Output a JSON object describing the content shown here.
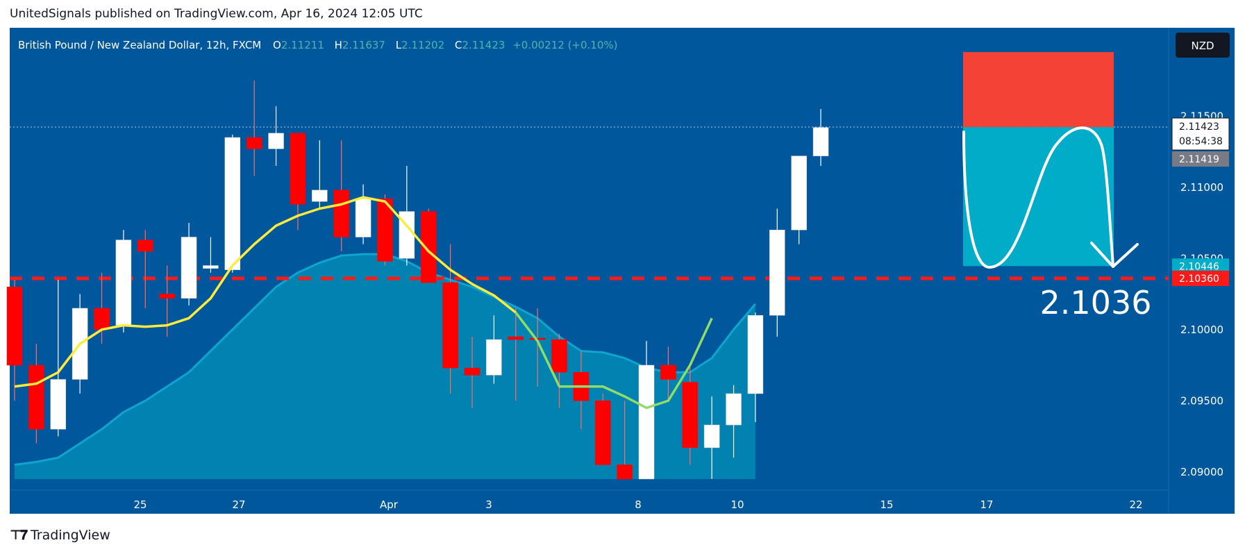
{
  "header": {
    "published_text": "UnitedSignals published on TradingView.com, Apr 16, 2024 12:05 UTC"
  },
  "legend": {
    "symbol": "British Pound / New Zealand Dollar, 12h, FXCM",
    "o_label": "O",
    "o_value": "2.11211",
    "h_label": "H",
    "h_value": "2.11637",
    "l_label": "L",
    "l_value": "2.11202",
    "c_label": "C",
    "c_value": "2.11423",
    "change": "+0.00212 (+0.10%)"
  },
  "currency_badge": "NZD",
  "price_labels": {
    "last_price": "2.11423",
    "countdown": "08:54:38",
    "bid": "2.11419",
    "target": "2.10446",
    "level": "2.10360"
  },
  "annotation_text": "2.1036",
  "footer": {
    "brand": "TradingView"
  },
  "colors": {
    "background": "#00579c",
    "bull_candle": "#ffffff",
    "bear_candle": "#ff0000",
    "ema_fast": "#ffeb3b",
    "ema_fast_late": "#8fdc6a",
    "ema_slow_fill": "#0289b4",
    "level_line": "#ff1a1a",
    "stop_zone": "#f44336",
    "target_zone": "#00acc8"
  },
  "icons": {
    "logo": "tradingview-logo-icon",
    "arrow": "curved-arrow-down-icon"
  },
  "chart_data": {
    "type": "candlestick",
    "ylim": [
      2.0895,
      2.1195
    ],
    "y_ticks": [
      "2.11500",
      "2.11000",
      "2.10500",
      "2.10000",
      "2.09500",
      "2.09000"
    ],
    "x_ticks": [
      "25",
      "27",
      "Apr",
      "3",
      "8",
      "10",
      "15",
      "17",
      "22"
    ],
    "horizontal_level": 2.1036,
    "last_price": 2.11423,
    "candles": [
      {
        "o": 2.103,
        "h": 2.1035,
        "l": 2.095,
        "c": 2.0975
      },
      {
        "o": 2.0975,
        "h": 2.099,
        "l": 2.092,
        "c": 2.093
      },
      {
        "o": 2.093,
        "h": 2.1035,
        "l": 2.0925,
        "c": 2.0965
      },
      {
        "o": 2.0965,
        "h": 2.1025,
        "l": 2.0955,
        "c": 2.1015
      },
      {
        "o": 2.1015,
        "h": 2.104,
        "l": 2.099,
        "c": 2.1
      },
      {
        "o": 2.1003,
        "h": 2.107,
        "l": 2.0998,
        "c": 2.1063
      },
      {
        "o": 2.1063,
        "h": 2.107,
        "l": 2.1015,
        "c": 2.1055
      },
      {
        "o": 2.1025,
        "h": 2.1045,
        "l": 2.0995,
        "c": 2.1022
      },
      {
        "o": 2.1022,
        "h": 2.1075,
        "l": 2.1017,
        "c": 2.1065
      },
      {
        "o": 2.1043,
        "h": 2.1065,
        "l": 2.104,
        "c": 2.1045
      },
      {
        "o": 2.1042,
        "h": 2.1137,
        "l": 2.104,
        "c": 2.1135
      },
      {
        "o": 2.1135,
        "h": 2.1175,
        "l": 2.1108,
        "c": 2.1127
      },
      {
        "o": 2.1127,
        "h": 2.1157,
        "l": 2.1115,
        "c": 2.1138
      },
      {
        "o": 2.1138,
        "h": 2.1138,
        "l": 2.107,
        "c": 2.1088
      },
      {
        "o": 2.109,
        "h": 2.1133,
        "l": 2.1085,
        "c": 2.1098
      },
      {
        "o": 2.1098,
        "h": 2.1133,
        "l": 2.1055,
        "c": 2.1065
      },
      {
        "o": 2.1065,
        "h": 2.1102,
        "l": 2.106,
        "c": 2.1092
      },
      {
        "o": 2.1092,
        "h": 2.1095,
        "l": 2.1045,
        "c": 2.1048
      },
      {
        "o": 2.105,
        "h": 2.1115,
        "l": 2.1045,
        "c": 2.1083
      },
      {
        "o": 2.1083,
        "h": 2.1085,
        "l": 2.1035,
        "c": 2.1033
      },
      {
        "o": 2.1033,
        "h": 2.106,
        "l": 2.0955,
        "c": 2.0973
      },
      {
        "o": 2.0973,
        "h": 2.0995,
        "l": 2.0945,
        "c": 2.0968
      },
      {
        "o": 2.0968,
        "h": 2.101,
        "l": 2.0962,
        "c": 2.0993
      },
      {
        "o": 2.0995,
        "h": 2.1015,
        "l": 2.095,
        "c": 2.0993
      },
      {
        "o": 2.0994,
        "h": 2.1015,
        "l": 2.096,
        "c": 2.0993
      },
      {
        "o": 2.0993,
        "h": 2.0997,
        "l": 2.0945,
        "c": 2.097
      },
      {
        "o": 2.097,
        "h": 2.0985,
        "l": 2.093,
        "c": 2.095
      },
      {
        "o": 2.095,
        "h": 2.0955,
        "l": 2.0905,
        "c": 2.0905
      },
      {
        "o": 2.0905,
        "h": 2.095,
        "l": 2.0895,
        "c": 2.0895
      },
      {
        "o": 2.0895,
        "h": 2.0992,
        "l": 2.0895,
        "c": 2.0975
      },
      {
        "o": 2.0975,
        "h": 2.0988,
        "l": 2.095,
        "c": 2.0965
      },
      {
        "o": 2.0963,
        "h": 2.0975,
        "l": 2.0905,
        "c": 2.0917
      },
      {
        "o": 2.0917,
        "h": 2.0953,
        "l": 2.0895,
        "c": 2.0933
      },
      {
        "o": 2.0933,
        "h": 2.0961,
        "l": 2.091,
        "c": 2.0955
      },
      {
        "o": 2.0955,
        "h": 2.1012,
        "l": 2.0935,
        "c": 2.101
      },
      {
        "o": 2.101,
        "h": 2.1085,
        "l": 2.0995,
        "c": 2.107
      },
      {
        "o": 2.107,
        "h": 2.112,
        "l": 2.106,
        "c": 2.1122
      },
      {
        "o": 2.1122,
        "h": 2.1155,
        "l": 2.1115,
        "c": 2.1142
      }
    ],
    "ema_fast": [
      2.096,
      2.0962,
      2.097,
      2.099,
      2.1,
      2.1003,
      2.1002,
      2.1003,
      2.1008,
      2.1022,
      2.1045,
      2.106,
      2.1073,
      2.108,
      2.1085,
      2.1088,
      2.1093,
      2.109,
      2.1073,
      2.1055,
      2.1042,
      2.1032,
      2.1024,
      2.1012,
      2.0992,
      2.096,
      2.096,
      2.096,
      2.0953,
      2.0945,
      2.095,
      2.0975,
      2.1008
    ],
    "ema_slow": [
      2.0905,
      2.0907,
      2.091,
      2.092,
      2.093,
      2.0942,
      2.095,
      2.096,
      2.097,
      2.0985,
      2.1,
      2.1015,
      2.103,
      2.104,
      2.1047,
      2.1052,
      2.1053,
      2.1053,
      2.1048,
      2.104,
      2.1035,
      2.103,
      2.1023,
      2.1016,
      2.1008,
      2.0995,
      2.0985,
      2.0984,
      2.098,
      2.0973,
      2.097,
      2.097,
      2.098,
      2.1,
      2.1018
    ]
  }
}
